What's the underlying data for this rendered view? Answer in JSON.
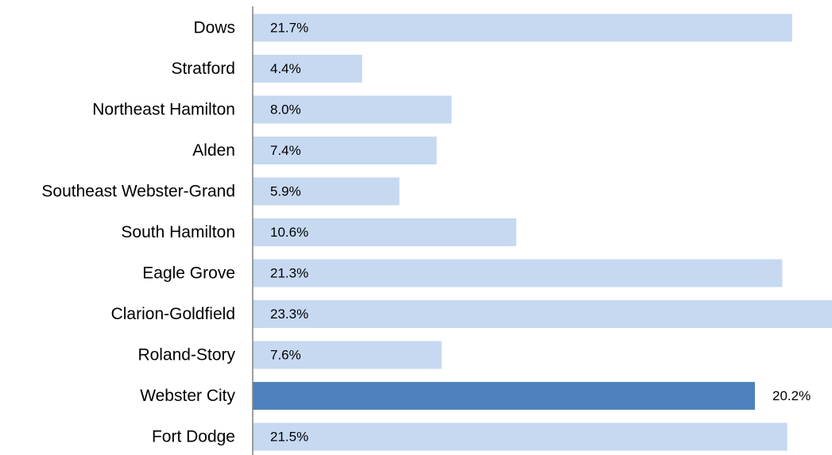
{
  "chart_data": {
    "type": "bar",
    "orientation": "horizontal",
    "categories": [
      "Dows",
      "Stratford",
      "Northeast Hamilton",
      "Alden",
      "Southeast Webster-Grand",
      "South Hamilton",
      "Eagle Grove",
      "Clarion-Goldfield",
      "Roland-Story",
      "Webster City",
      "Fort Dodge"
    ],
    "values": [
      21.7,
      4.4,
      8.0,
      7.4,
      5.9,
      10.6,
      21.3,
      23.3,
      7.6,
      20.2,
      21.5
    ],
    "value_labels": [
      "21.7%",
      "4.4%",
      "8.0%",
      "7.4%",
      "5.9%",
      "10.6%",
      "21.3%",
      "23.3%",
      "7.6%",
      "20.2%",
      "21.5%"
    ],
    "highlight_category": "Webster City",
    "xlim": [
      0,
      23.3
    ],
    "grid": false,
    "legend": "none",
    "colors": {
      "bar": "#c6d9f1",
      "highlight": "#4f81bd",
      "axis": "#808080"
    }
  }
}
